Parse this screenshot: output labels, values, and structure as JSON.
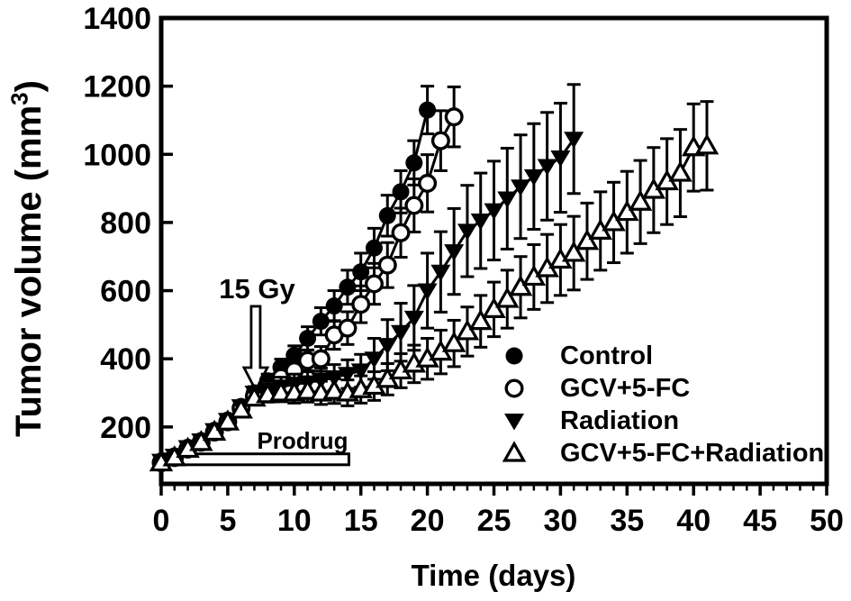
{
  "figure": {
    "x_axis_label": "Time (days)",
    "y_axis_label_main": "Tumor volume (mm",
    "y_axis_label_superscript": "3",
    "y_axis_label_close": ")",
    "background_color": "#ffffff",
    "ink_color": "#000000"
  },
  "legend": {
    "position": "inside-right",
    "items": [
      {
        "label": "Control",
        "marker": "filled-circle"
      },
      {
        "label": "GCV+5-FC",
        "marker": "open-circle"
      },
      {
        "label": "Radiation",
        "marker": "filled-triangle-down"
      },
      {
        "label": "GCV+5-FC+Radiation",
        "marker": "open-triangle-up"
      }
    ]
  },
  "chart_data": {
    "type": "scatter",
    "title": "",
    "xlabel": "Time (days)",
    "ylabel": "Tumor volume (mm3)",
    "xlim": [
      0,
      50
    ],
    "ylim": [
      33,
      1400
    ],
    "x_major_ticks": [
      0,
      5,
      10,
      15,
      20,
      25,
      30,
      35,
      40,
      45,
      50
    ],
    "x_minor_tick_step": 1,
    "y_major_ticks": [
      200,
      400,
      600,
      800,
      1000,
      1200,
      1400
    ],
    "grid": false,
    "error_bars": true,
    "legend_position": "inside-right",
    "annotations": [
      {
        "type": "text",
        "text": "15 Gy",
        "day": 7.2,
        "value": 600
      },
      {
        "type": "arrow-down",
        "day": 7.1,
        "value_from": 554,
        "value_to": 308
      },
      {
        "type": "bar",
        "label": "Prodrug",
        "day_start": 0.2,
        "day_end": 14.1,
        "value_top": 121,
        "value_bottom": 89,
        "label_day": 10.6,
        "label_value": 160
      }
    ],
    "series": [
      {
        "name": "Control",
        "marker": "filled-circle",
        "days": [
          0,
          1,
          2,
          3,
          4,
          5,
          6,
          7,
          8,
          9,
          10,
          11,
          12,
          13,
          14,
          15,
          16,
          17,
          18,
          19,
          20
        ],
        "values": [
          100,
          115,
          140,
          160,
          190,
          220,
          260,
          300,
          335,
          375,
          410,
          460,
          510,
          555,
          610,
          655,
          725,
          820,
          890,
          975,
          1130
        ],
        "errors": [
          8,
          8,
          10,
          10,
          12,
          14,
          16,
          18,
          20,
          24,
          28,
          34,
          40,
          45,
          50,
          55,
          58,
          60,
          62,
          65,
          70
        ]
      },
      {
        "name": "GCV+5-FC",
        "marker": "open-circle",
        "days": [
          0,
          1,
          2,
          3,
          4,
          5,
          6,
          7,
          8,
          9,
          10,
          11,
          12,
          13,
          14,
          15,
          16,
          17,
          18,
          19,
          20,
          21,
          22
        ],
        "values": [
          95,
          110,
          135,
          155,
          185,
          215,
          255,
          290,
          320,
          345,
          365,
          395,
          400,
          470,
          490,
          560,
          620,
          675,
          770,
          850,
          915,
          1040,
          1110
        ],
        "errors": [
          8,
          8,
          10,
          10,
          12,
          14,
          16,
          18,
          20,
          22,
          26,
          30,
          36,
          42,
          48,
          54,
          60,
          66,
          72,
          78,
          84,
          88,
          88
        ]
      },
      {
        "name": "Radiation",
        "marker": "filled-triangle-down",
        "days": [
          0,
          1,
          2,
          3,
          4,
          5,
          6,
          7,
          8,
          9,
          10,
          11,
          12,
          13,
          14,
          15,
          16,
          17,
          18,
          19,
          20,
          21,
          22,
          23,
          24,
          25,
          26,
          27,
          28,
          29,
          30,
          31
        ],
        "values": [
          100,
          115,
          140,
          160,
          190,
          220,
          260,
          300,
          310,
          318,
          325,
          330,
          338,
          345,
          355,
          365,
          400,
          440,
          478,
          520,
          600,
          655,
          715,
          775,
          805,
          835,
          870,
          905,
          935,
          965,
          990,
          1045
        ],
        "errors": [
          8,
          8,
          10,
          10,
          12,
          14,
          16,
          18,
          25,
          28,
          30,
          32,
          35,
          38,
          42,
          48,
          60,
          75,
          85,
          95,
          110,
          118,
          126,
          134,
          140,
          145,
          148,
          152,
          155,
          158,
          160,
          160
        ]
      },
      {
        "name": "GCV+5-FC+Radiation",
        "marker": "open-triangle-up",
        "days": [
          0,
          1,
          2,
          3,
          4,
          5,
          6,
          7,
          8,
          9,
          10,
          11,
          12,
          13,
          14,
          15,
          16,
          17,
          18,
          19,
          20,
          21,
          22,
          23,
          24,
          25,
          26,
          27,
          28,
          29,
          30,
          31,
          32,
          33,
          34,
          35,
          36,
          37,
          38,
          39,
          40,
          41
        ],
        "values": [
          95,
          110,
          135,
          155,
          185,
          215,
          250,
          285,
          295,
          300,
          300,
          305,
          300,
          305,
          300,
          310,
          320,
          340,
          365,
          385,
          400,
          420,
          445,
          480,
          510,
          545,
          575,
          610,
          640,
          665,
          690,
          710,
          745,
          775,
          800,
          830,
          860,
          895,
          920,
          945,
          1020,
          1025
        ],
        "errors": [
          8,
          8,
          10,
          10,
          12,
          14,
          16,
          18,
          22,
          26,
          30,
          32,
          34,
          36,
          38,
          40,
          42,
          46,
          50,
          55,
          60,
          64,
          68,
          72,
          76,
          80,
          85,
          90,
          95,
          100,
          104,
          108,
          112,
          115,
          118,
          120,
          122,
          125,
          126,
          128,
          128,
          130
        ]
      }
    ]
  }
}
